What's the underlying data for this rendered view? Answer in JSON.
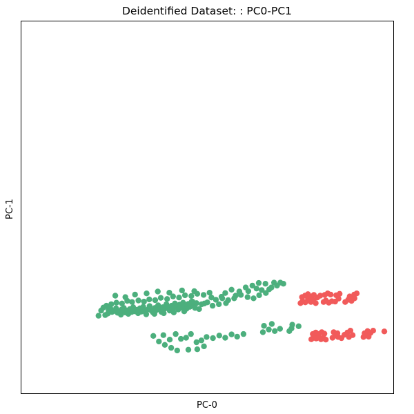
{
  "chart_data": {
    "type": "scatter",
    "title": "Deidentified Dataset: : PC0-PC1",
    "xlabel": "PC-0",
    "ylabel": "PC-1",
    "xlim": [
      0,
      100
    ],
    "ylim": [
      0,
      100
    ],
    "grid": false,
    "ticks_visible": false,
    "series": [
      {
        "color": "#4caf7d",
        "points": [
          [
            22.6,
            21.1
          ],
          [
            23.3,
            21.5
          ],
          [
            23.5,
            22.4
          ],
          [
            24.0,
            22.8
          ],
          [
            24.4,
            21.9
          ],
          [
            25.0,
            22.2
          ],
          [
            25.5,
            22.9
          ],
          [
            25.9,
            21.7
          ],
          [
            26.3,
            22.0
          ],
          [
            26.8,
            21.2
          ],
          [
            27.0,
            22.6
          ],
          [
            27.6,
            23.0
          ],
          [
            27.9,
            21.8
          ],
          [
            28.4,
            22.3
          ],
          [
            28.8,
            21.4
          ],
          [
            29.2,
            22.7
          ],
          [
            29.7,
            21.9
          ],
          [
            30.1,
            23.2
          ],
          [
            30.5,
            22.1
          ],
          [
            31.0,
            22.5
          ],
          [
            31.4,
            21.6
          ],
          [
            31.9,
            22.9
          ],
          [
            32.3,
            22.0
          ],
          [
            32.8,
            23.3
          ],
          [
            33.2,
            22.2
          ],
          [
            33.6,
            21.3
          ],
          [
            34.1,
            22.6
          ],
          [
            34.5,
            23.5
          ],
          [
            35.0,
            22.3
          ],
          [
            35.4,
            21.8
          ],
          [
            35.9,
            23.0
          ],
          [
            36.3,
            22.4
          ],
          [
            36.8,
            23.7
          ],
          [
            37.2,
            22.6
          ],
          [
            37.7,
            21.9
          ],
          [
            38.1,
            23.2
          ],
          [
            38.6,
            22.8
          ],
          [
            39.0,
            24.0
          ],
          [
            39.5,
            23.0
          ],
          [
            39.9,
            22.3
          ],
          [
            40.4,
            23.6
          ],
          [
            40.8,
            22.9
          ],
          [
            41.3,
            24.2
          ],
          [
            41.7,
            23.3
          ],
          [
            42.2,
            22.6
          ],
          [
            42.6,
            23.9
          ],
          [
            43.1,
            23.1
          ],
          [
            43.5,
            24.4
          ],
          [
            44.0,
            23.5
          ],
          [
            44.4,
            22.8
          ],
          [
            44.9,
            24.1
          ],
          [
            45.3,
            23.3
          ],
          [
            45.8,
            24.7
          ],
          [
            46.2,
            23.8
          ],
          [
            46.7,
            23.0
          ],
          [
            47.1,
            24.3
          ],
          [
            22.9,
            23.6
          ],
          [
            24.2,
            24.0
          ],
          [
            25.6,
            24.4
          ],
          [
            27.1,
            24.2
          ],
          [
            28.5,
            24.9
          ],
          [
            29.8,
            24.6
          ],
          [
            31.5,
            25.0
          ],
          [
            33.0,
            24.7
          ],
          [
            34.4,
            25.3
          ],
          [
            36.0,
            25.1
          ],
          [
            37.5,
            25.7
          ],
          [
            39.2,
            25.4
          ],
          [
            40.8,
            26.1
          ],
          [
            42.4,
            25.8
          ],
          [
            44.0,
            26.4
          ],
          [
            45.7,
            26.2
          ],
          [
            47.3,
            26.8
          ],
          [
            49.0,
            26.5
          ],
          [
            50.6,
            27.1
          ],
          [
            25.3,
            26.3
          ],
          [
            28.0,
            25.9
          ],
          [
            30.6,
            26.6
          ],
          [
            33.7,
            26.9
          ],
          [
            36.7,
            27.4
          ],
          [
            39.8,
            27.1
          ],
          [
            43.2,
            27.7
          ],
          [
            46.5,
            27.5
          ],
          [
            52.3,
            25.2
          ],
          [
            54.0,
            25.6
          ],
          [
            55.6,
            25.1
          ],
          [
            50.0,
            24.5
          ],
          [
            48.5,
            24.0
          ],
          [
            20.8,
            20.9
          ],
          [
            21.5,
            22.3
          ],
          [
            22.1,
            23.1
          ],
          [
            35.8,
            21.4
          ],
          [
            38.3,
            21.6
          ],
          [
            41.0,
            21.8
          ],
          [
            43.8,
            22.1
          ],
          [
            47.8,
            22.7
          ],
          [
            51.4,
            23.6
          ],
          [
            53.1,
            24.0
          ],
          [
            55.0,
            24.3
          ],
          [
            57.2,
            25.6
          ],
          [
            59.0,
            26.5
          ],
          [
            60.8,
            25.9
          ],
          [
            62.4,
            25.6
          ],
          [
            63.9,
            26.4
          ],
          [
            65.7,
            27.0
          ],
          [
            64.6,
            27.8
          ],
          [
            63.2,
            28.2
          ],
          [
            61.0,
            27.5
          ],
          [
            58.6,
            27.4
          ],
          [
            57.6,
            26.3
          ],
          [
            56.5,
            27.9
          ],
          [
            54.8,
            27.0
          ],
          [
            60.3,
            28.5
          ],
          [
            62.1,
            29.0
          ],
          [
            63.8,
            29.7
          ],
          [
            65.6,
            29.5
          ],
          [
            67.2,
            28.5
          ],
          [
            68.7,
            29.0
          ],
          [
            70.4,
            29.5
          ],
          [
            69.6,
            29.8
          ],
          [
            67.9,
            29.8
          ],
          [
            66.6,
            28.0
          ],
          [
            53.8,
            26.0
          ],
          [
            51.1,
            25.8
          ],
          [
            49.2,
            24.2
          ],
          [
            46.0,
            24.7
          ],
          [
            35.5,
            15.5
          ],
          [
            37.0,
            14.0
          ],
          [
            38.2,
            15.7
          ],
          [
            39.9,
            14.5
          ],
          [
            41.5,
            16.0
          ],
          [
            42.9,
            14.7
          ],
          [
            44.3,
            15.0
          ],
          [
            45.6,
            16.0
          ],
          [
            47.1,
            13.8
          ],
          [
            48.4,
            14.3
          ],
          [
            49.8,
            15.2
          ],
          [
            51.5,
            14.9
          ],
          [
            53.2,
            15.6
          ],
          [
            54.8,
            15.0
          ],
          [
            56.5,
            15.9
          ],
          [
            58.0,
            15.3
          ],
          [
            59.7,
            16.0
          ],
          [
            38.6,
            13.1
          ],
          [
            40.3,
            12.3
          ],
          [
            41.9,
            11.6
          ],
          [
            44.9,
            11.8
          ],
          [
            47.3,
            11.9
          ],
          [
            49.1,
            12.7
          ],
          [
            64.9,
            16.5
          ],
          [
            66.5,
            17.2
          ],
          [
            68.1,
            16.8
          ],
          [
            65.2,
            18.2
          ],
          [
            67.3,
            18.7
          ],
          [
            69.5,
            17.4
          ],
          [
            72.6,
            17.5
          ],
          [
            72.8,
            18.5
          ],
          [
            74.5,
            18.1
          ],
          [
            72.0,
            16.8
          ]
        ]
      },
      {
        "color": "#f15a5a",
        "points": [
          [
            75.0,
            24.3
          ],
          [
            75.6,
            24.8
          ],
          [
            76.3,
            24.5
          ],
          [
            77.0,
            25.2
          ],
          [
            77.8,
            24.6
          ],
          [
            78.4,
            25.0
          ],
          [
            79.1,
            24.3
          ],
          [
            75.4,
            25.9
          ],
          [
            76.2,
            26.3
          ],
          [
            77.0,
            26.7
          ],
          [
            77.8,
            26.1
          ],
          [
            78.6,
            26.5
          ],
          [
            79.5,
            25.8
          ],
          [
            80.3,
            26.3
          ],
          [
            81.2,
            24.6
          ],
          [
            81.8,
            25.0
          ],
          [
            82.6,
            24.4
          ],
          [
            83.4,
            24.8
          ],
          [
            81.5,
            26.5
          ],
          [
            82.3,
            26.9
          ],
          [
            83.1,
            26.6
          ],
          [
            84.3,
            24.7
          ],
          [
            85.2,
            25.5
          ],
          [
            84.6,
            26.4
          ],
          [
            85.5,
            26.8
          ],
          [
            87.0,
            24.6
          ],
          [
            87.8,
            25.2
          ],
          [
            88.7,
            24.9
          ],
          [
            88.2,
            26.1
          ],
          [
            89.4,
            26.6
          ],
          [
            90.1,
            26.9
          ],
          [
            89.5,
            25.6
          ],
          [
            77.9,
            14.6
          ],
          [
            78.5,
            15.2
          ],
          [
            79.2,
            14.8
          ],
          [
            79.8,
            15.4
          ],
          [
            80.5,
            14.6
          ],
          [
            81.1,
            15.0
          ],
          [
            81.8,
            14.5
          ],
          [
            78.3,
            16.0
          ],
          [
            79.1,
            16.4
          ],
          [
            79.9,
            16.0
          ],
          [
            80.7,
            16.5
          ],
          [
            81.4,
            16.1
          ],
          [
            83.6,
            15.0
          ],
          [
            84.4,
            15.6
          ],
          [
            85.1,
            15.2
          ],
          [
            83.9,
            16.5
          ],
          [
            84.9,
            16.2
          ],
          [
            86.0,
            14.9
          ],
          [
            86.8,
            15.8
          ],
          [
            87.6,
            16.4
          ],
          [
            88.4,
            16.9
          ],
          [
            89.0,
            15.7
          ],
          [
            88.0,
            15.2
          ],
          [
            91.9,
            15.2
          ],
          [
            92.5,
            15.7
          ],
          [
            93.3,
            15.3
          ],
          [
            92.2,
            16.2
          ],
          [
            93.0,
            16.8
          ],
          [
            93.8,
            16.3
          ],
          [
            94.5,
            16.9
          ],
          [
            97.5,
            16.7
          ]
        ]
      }
    ]
  }
}
